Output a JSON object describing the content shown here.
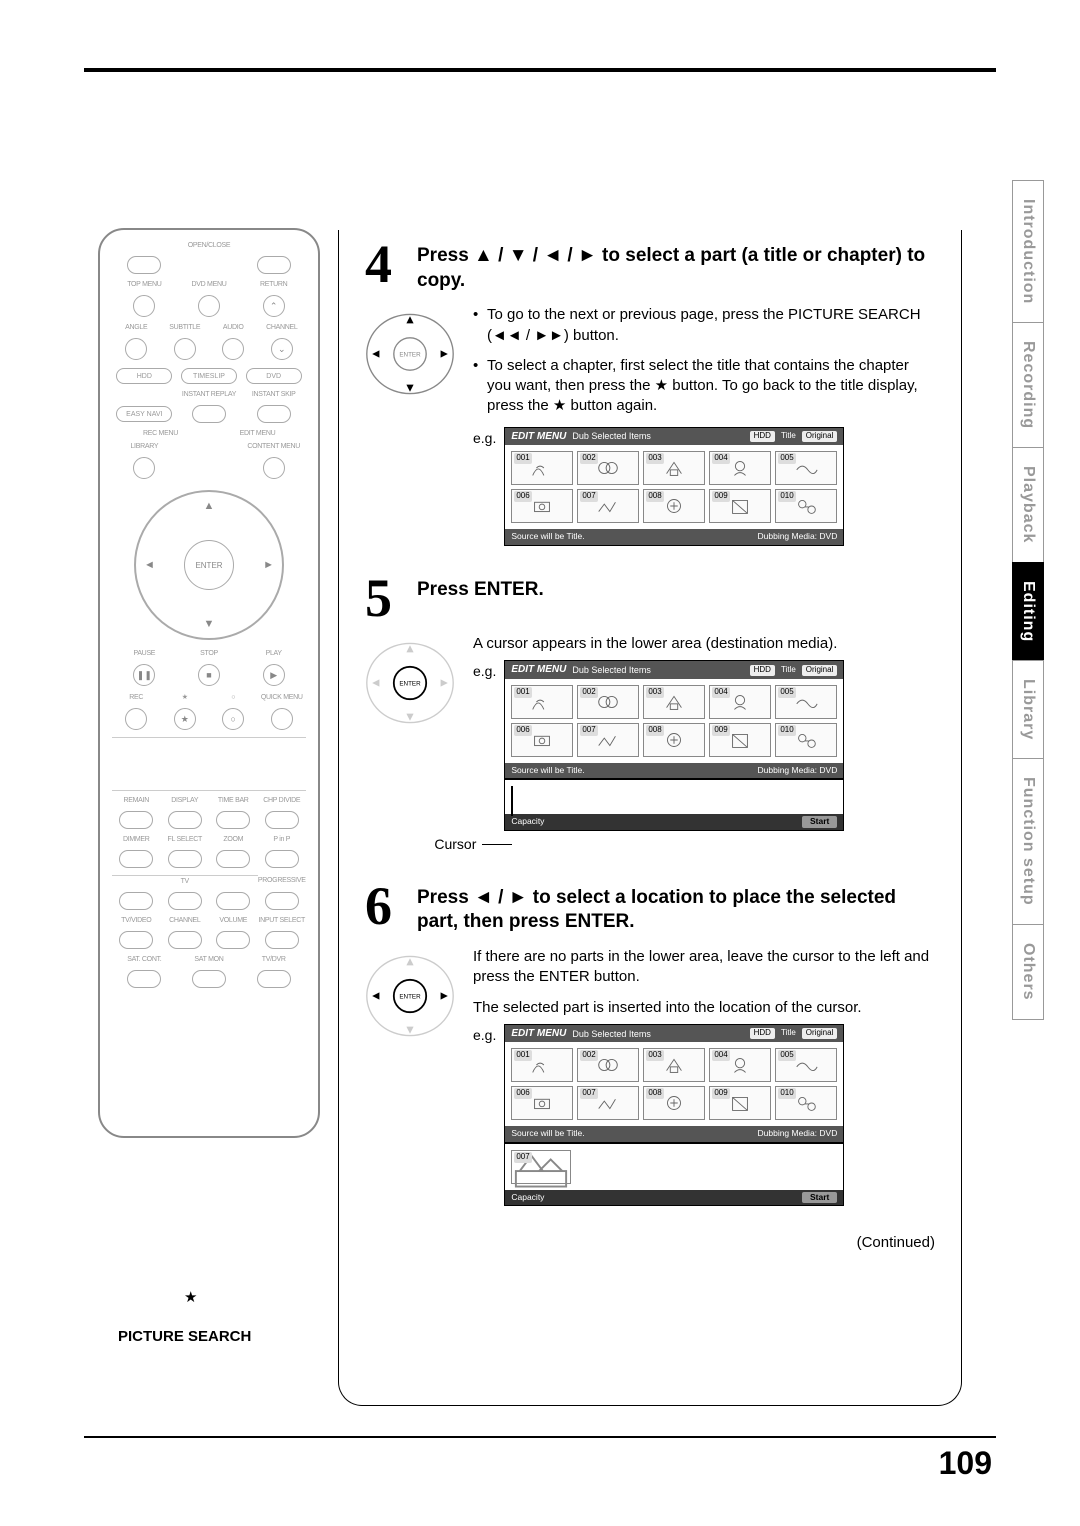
{
  "page_number": "109",
  "tabs": [
    "Introduction",
    "Recording",
    "Playback",
    "Editing",
    "Library",
    "Function setup",
    "Others"
  ],
  "active_tab_index": 3,
  "picture_search_label": "PICTURE SEARCH",
  "continued": "(Continued)",
  "remote": {
    "enter": "ENTER",
    "top_labels": [
      "OPEN/CLOSE",
      "",
      "",
      ""
    ],
    "row2": [
      "TOP MENU",
      "DVD MENU",
      "RETURN"
    ],
    "row3": [
      "ANGLE",
      "SUBTITLE",
      "AUDIO",
      "CHANNEL"
    ],
    "row4": [
      "HDD",
      "TIMESLIP",
      "DVD"
    ],
    "row5": [
      "EASY NAVI",
      "",
      "INSTANT REPLAY",
      "INSTANT SKIP"
    ],
    "row6": [
      "REC MENU",
      "EDIT MENU"
    ],
    "row7": [
      "LIBRARY",
      "",
      "CONTENT MENU"
    ],
    "play_row": [
      "PAUSE",
      "STOP",
      "PLAY"
    ],
    "rec_row": [
      "REC",
      "★",
      "○",
      "QUICK MENU"
    ],
    "bottom1": [
      "REMAIN",
      "DISPLAY",
      "TIME BAR",
      "CHP DIVIDE"
    ],
    "bottom2": [
      "DIMMER",
      "FL SELECT",
      "ZOOM",
      "P in P"
    ],
    "bottom3_label": "TV",
    "bottom3b": "PROGRESSIVE",
    "bottom4": [
      "TV/VIDEO",
      "CHANNEL",
      "VOLUME",
      "INPUT SELECT"
    ],
    "bottom5": [
      "SAT. CONT.",
      "SAT MON",
      "TV/DVR"
    ]
  },
  "steps": [
    {
      "num": "4",
      "title_pre": "Press ",
      "title_sym": "▲ / ▼ / ◄ / ►",
      "title_post": " to select a part (a title or chapter) to copy.",
      "dpad_active": [
        "up",
        "down",
        "left",
        "right"
      ],
      "bullets": [
        {
          "pre": "To go to the next or previous page, press the PICTURE SEARCH (",
          "sym": "◄◄ / ►►",
          "post": ") button."
        },
        {
          "pre": "To select a chapter, first select the title that contains the chapter you want, then press the ",
          "sym": "★",
          "post": " button. To go back to the title display, press the ★ button again."
        }
      ],
      "screen": {
        "menu": "EDIT MENU",
        "sub": "Dub Selected Items",
        "hdd": "HDD",
        "title": "Title",
        "orig": "Original",
        "footer_l": "Source will be Title.",
        "footer_r": "Dubbing Media: DVD",
        "thumbs": [
          "001",
          "002",
          "003",
          "004",
          "005",
          "006",
          "007",
          "008",
          "009",
          "010"
        ]
      }
    },
    {
      "num": "5",
      "title_pre": "Press ENTER.",
      "title_sym": "",
      "title_post": "",
      "dpad_active": [
        "enter"
      ],
      "body_plain": "A cursor appears in the lower area (destination media).",
      "cursor_label": "Cursor",
      "screen": {
        "menu": "EDIT MENU",
        "sub": "Dub Selected Items",
        "hdd": "HDD",
        "title": "Title",
        "orig": "Original",
        "footer_l": "Source will be Title.",
        "footer_r": "Dubbing Media: DVD",
        "thumbs": [
          "001",
          "002",
          "003",
          "004",
          "005",
          "006",
          "007",
          "008",
          "009",
          "010"
        ],
        "capacity": "Capacity",
        "start": "Start"
      }
    },
    {
      "num": "6",
      "title_pre": "Press ",
      "title_sym": "◄ / ►",
      "title_post": " to select a location to place the selected part, then press ENTER.",
      "dpad_active": [
        "left",
        "right",
        "enter"
      ],
      "body_plain1": "If there are no parts in the lower area, leave the cursor to the left and press the ENTER button.",
      "body_plain2": "The selected part is inserted into the location of the cursor.",
      "screen": {
        "menu": "EDIT MENU",
        "sub": "Dub Selected Items",
        "hdd": "HDD",
        "title": "Title",
        "orig": "Original",
        "footer_l": "Source will be Title.",
        "footer_r": "Dubbing Media: DVD",
        "thumbs": [
          "001",
          "002",
          "003",
          "004",
          "005",
          "006",
          "007",
          "008",
          "009",
          "010"
        ],
        "dest_thumb": "007",
        "capacity": "Capacity",
        "start": "Start"
      }
    }
  ],
  "eg_label": "e.g.",
  "colors": {
    "text": "#000000",
    "muted": "#999999",
    "screen_hdr": "#555555",
    "tab_active_bg": "#000000"
  }
}
